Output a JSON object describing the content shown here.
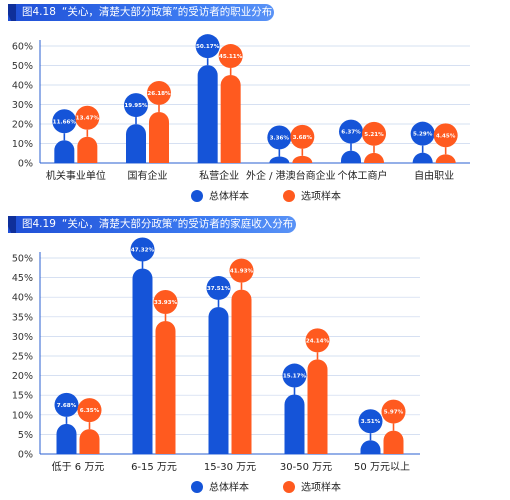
{
  "colors": {
    "series_total": "#1554d8",
    "series_option": "#ff5a1f",
    "axis": "#2a5fd0",
    "grid": "#c9d6ee"
  },
  "chart_data": [
    {
      "type": "bar",
      "number": "图4.18",
      "title": "“关心，清楚大部分政策”的受访者的职业分布",
      "categories": [
        "机关事业单位",
        "国有企业",
        "私营企业",
        "外企 / 港澳台商企业",
        "个体工商户",
        "自由职业"
      ],
      "series": [
        {
          "name": "总体样本",
          "values": [
            11.66,
            19.95,
            50.17,
            3.36,
            6.37,
            5.29
          ],
          "labels": [
            "11.66%",
            "19.95%",
            "50.17%",
            "3.36%",
            "6.37%",
            "5.29%"
          ]
        },
        {
          "name": "选项样本",
          "values": [
            13.47,
            26.18,
            45.11,
            3.68,
            5.21,
            4.45
          ],
          "labels": [
            "13.47%",
            "26.18%",
            "45.11%",
            "3.68%",
            "5.21%",
            "4.45%"
          ]
        }
      ],
      "ylim": [
        0,
        60
      ],
      "yticks": [
        0,
        10,
        20,
        30,
        40,
        50,
        60
      ],
      "yticklabels": [
        "0%",
        "10%",
        "20%",
        "30%",
        "40%",
        "50%",
        "60%"
      ],
      "grid": true,
      "legend_position": "bottom"
    },
    {
      "type": "bar",
      "number": "图4.19",
      "title": "“关心，清楚大部分政策”的受访者的家庭收入分布",
      "categories": [
        "低于 6 万元",
        "6-15 万元",
        "15-30 万元",
        "30-50 万元",
        "50 万元以上"
      ],
      "series": [
        {
          "name": "总体样本",
          "values": [
            7.68,
            47.32,
            37.51,
            15.17,
            3.51
          ],
          "labels": [
            "7.68%",
            "47.32%",
            "37.51%",
            "15.17%",
            "3.51%"
          ]
        },
        {
          "name": "选项样本",
          "values": [
            6.35,
            33.93,
            41.93,
            24.14,
            5.97
          ],
          "labels": [
            "6.35%",
            "33.93%",
            "41.93%",
            "24.14%",
            "5.97%"
          ]
        }
      ],
      "ylim": [
        0,
        50
      ],
      "yticks": [
        0,
        5,
        10,
        15,
        20,
        25,
        30,
        35,
        40,
        45,
        50
      ],
      "yticklabels": [
        "0%",
        "5%",
        "10%",
        "15%",
        "20%",
        "25%",
        "30%",
        "35%",
        "40%",
        "45%",
        "50%"
      ],
      "grid": true,
      "legend_position": "bottom"
    }
  ]
}
